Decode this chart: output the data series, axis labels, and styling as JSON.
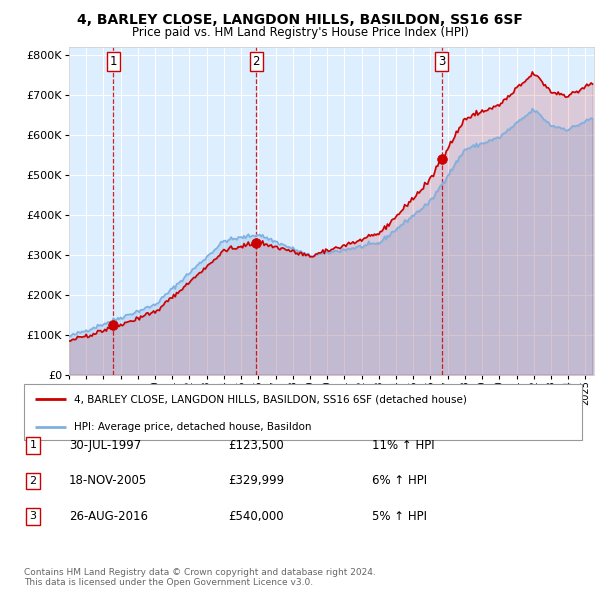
{
  "title1": "4, BARLEY CLOSE, LANGDON HILLS, BASILDON, SS16 6SF",
  "title2": "Price paid vs. HM Land Registry's House Price Index (HPI)",
  "ylim": [
    0,
    820000
  ],
  "yticks": [
    0,
    100000,
    200000,
    300000,
    400000,
    500000,
    600000,
    700000,
    800000
  ],
  "ytick_labels": [
    "£0",
    "£100K",
    "£200K",
    "£300K",
    "£400K",
    "£500K",
    "£600K",
    "£700K",
    "£800K"
  ],
  "bg_color": "#ddeeff",
  "line_color_hpi": "#7fb0e0",
  "line_color_price": "#cc0000",
  "marker_color": "#cc0000",
  "sale_points": [
    {
      "year": 1997.58,
      "price": 123500,
      "label": "1"
    },
    {
      "year": 2005.88,
      "price": 329999,
      "label": "2"
    },
    {
      "year": 2016.65,
      "price": 540000,
      "label": "3"
    }
  ],
  "legend_line1": "4, BARLEY CLOSE, LANGDON HILLS, BASILDON, SS16 6SF (detached house)",
  "legend_line2": "HPI: Average price, detached house, Basildon",
  "table_rows": [
    {
      "num": "1",
      "date": "30-JUL-1997",
      "price": "£123,500",
      "hpi": "11% ↑ HPI"
    },
    {
      "num": "2",
      "date": "18-NOV-2005",
      "price": "£329,999",
      "hpi": "6% ↑ HPI"
    },
    {
      "num": "3",
      "date": "26-AUG-2016",
      "price": "£540,000",
      "hpi": "5% ↑ HPI"
    }
  ],
  "footer": "Contains HM Land Registry data © Crown copyright and database right 2024.\nThis data is licensed under the Open Government Licence v3.0.",
  "xmin": 1995.0,
  "xmax": 2025.5
}
